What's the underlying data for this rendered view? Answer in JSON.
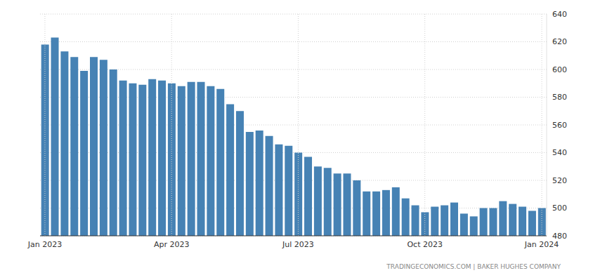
{
  "chart_data": {
    "type": "bar",
    "source": "TRADINGECONOMICS.COM | BAKER HUGHES COMPANY",
    "categories": [
      "Jan 2023",
      null,
      null,
      null,
      null,
      null,
      null,
      null,
      null,
      null,
      null,
      null,
      null,
      "Apr 2023",
      null,
      null,
      null,
      null,
      null,
      null,
      null,
      null,
      null,
      null,
      null,
      null,
      "Jul 2023",
      null,
      null,
      null,
      null,
      null,
      null,
      null,
      null,
      null,
      null,
      null,
      null,
      "Oct 2023",
      null,
      null,
      null,
      null,
      null,
      null,
      null,
      null,
      null,
      null,
      null,
      "Jan 2024"
    ],
    "values": [
      618,
      623,
      613,
      609,
      599,
      609,
      607,
      600,
      592,
      590,
      589,
      593,
      592,
      590,
      588,
      591,
      591,
      588,
      586,
      575,
      570,
      555,
      556,
      552,
      546,
      545,
      540,
      537,
      530,
      529,
      525,
      525,
      520,
      512,
      512,
      513,
      515,
      507,
      502,
      497,
      501,
      502,
      504,
      496,
      494,
      500,
      500,
      505,
      503,
      501,
      498,
      500
    ],
    "color": "#4682b4",
    "ylim": [
      480,
      640
    ],
    "yticks": [
      480,
      500,
      520,
      540,
      560,
      580,
      600,
      620,
      640
    ],
    "grid": true
  }
}
